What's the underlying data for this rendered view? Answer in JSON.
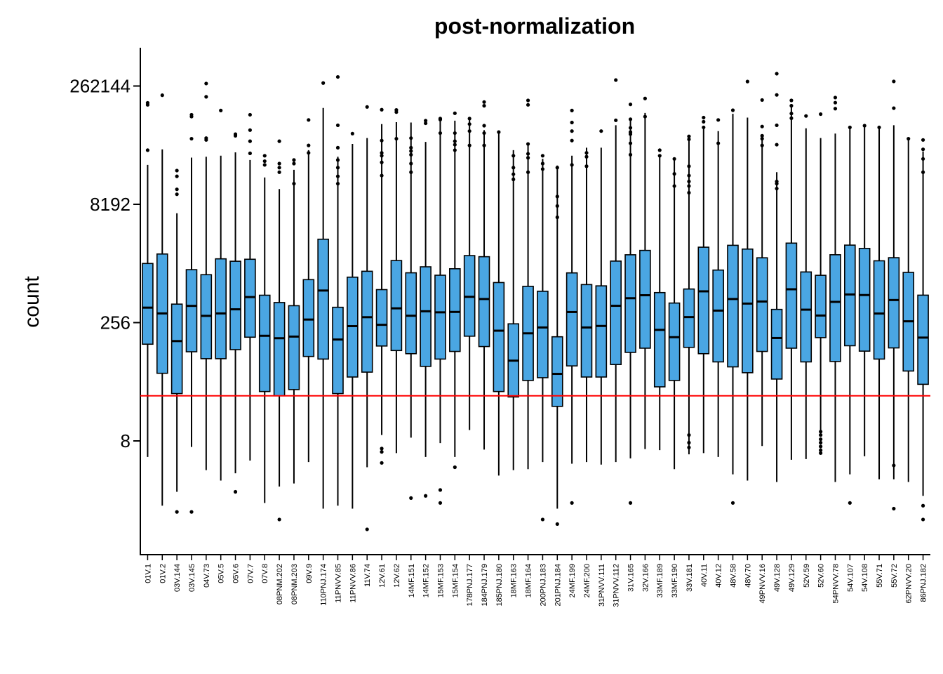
{
  "chart_data": {
    "type": "boxplot",
    "title": "post-normalization",
    "xlabel": "",
    "ylabel": "count",
    "y_scale": "log2",
    "ylim": [
      0.6,
      600000
    ],
    "y_ticks": [
      8,
      256,
      8192,
      262144
    ],
    "y_tick_labels": [
      "8",
      "256",
      "8192",
      "262144"
    ],
    "reference_line": {
      "y": 30,
      "color": "#ff0000"
    },
    "box_color": "#4aa6e3",
    "grid": false,
    "legend": "none",
    "categories": [
      "01V.1",
      "01V.2",
      "03V.144",
      "03V.145",
      "04V.73",
      "05V.5",
      "05V.6",
      "07V.7",
      "07V.8",
      "08PNM.202",
      "08PNM.203",
      "09V.9",
      "110PNJ.174",
      "11PNVV.85",
      "11PNVV.86",
      "11V.74",
      "12V.61",
      "12V.62",
      "14MF.151",
      "14MF.152",
      "15MF.153",
      "15MF.154",
      "178PNJ.177",
      "184PNJ.179",
      "185PNJ.180",
      "18MF.163",
      "18MF.164",
      "200PNJ.183",
      "201PNJ.184",
      "24MF.199",
      "24MF.200",
      "31PNVV.111",
      "31PNVV.112",
      "31V.165",
      "32V.166",
      "33MF.189",
      "33MF.190",
      "33V.181",
      "40V.11",
      "40V.12",
      "48V.58",
      "48V.70",
      "49PNVV.16",
      "49V.128",
      "49V.129",
      "52V.59",
      "52V.60",
      "54PNVV.78",
      "54V.107",
      "54V.108",
      "55V.71",
      "55V.72",
      "62PNVV.20",
      "86PNJ.182"
    ],
    "boxes": [
      {
        "low": 5,
        "q1": 136,
        "median": 397,
        "q3": 1447,
        "high": 26000,
        "outliers": [
          40000,
          151000,
          160000
        ]
      },
      {
        "low": 1.2,
        "q1": 58,
        "median": 335,
        "q3": 1910,
        "high": 41000,
        "outliers": [
          200000
        ]
      },
      {
        "low": 1.8,
        "q1": 32,
        "median": 149,
        "q3": 440,
        "high": 6300,
        "outliers": [
          1.0,
          11000,
          12700,
          18600,
          22000
        ]
      },
      {
        "low": 6.7,
        "q1": 109,
        "median": 418,
        "q3": 1207,
        "high": 32200,
        "outliers": [
          1.0,
          56000,
          107000,
          113000
        ]
      },
      {
        "low": 3.4,
        "q1": 89,
        "median": 312,
        "q3": 1042,
        "high": 33000,
        "outliers": [
          54000,
          57000,
          191000,
          282000
        ]
      },
      {
        "low": 2.5,
        "q1": 89,
        "median": 335,
        "q3": 1658,
        "high": 34000,
        "outliers": [
          128000
        ]
      },
      {
        "low": 3.1,
        "q1": 116,
        "median": 378,
        "q3": 1545,
        "high": 37500,
        "outliers": [
          1.8,
          61000,
          64000
        ]
      },
      {
        "low": 4.5,
        "q1": 167,
        "median": 541,
        "q3": 1638,
        "high": 30000,
        "outliers": [
          36500,
          52000,
          72000,
          113000
        ]
      },
      {
        "low": 1.3,
        "q1": 34,
        "median": 174,
        "q3": 571,
        "high": 18000,
        "outliers": [
          26000,
          29000,
          34000
        ]
      },
      {
        "low": 2.1,
        "q1": 30,
        "median": 162,
        "q3": 461,
        "high": 12800,
        "outliers": [
          0.8,
          21000,
          24000,
          27000,
          52000
        ]
      },
      {
        "low": 2.3,
        "q1": 36,
        "median": 170,
        "q3": 420,
        "high": 22500,
        "outliers": [
          15000,
          27000,
          30000
        ]
      },
      {
        "low": 4.3,
        "q1": 95,
        "median": 280,
        "q3": 901,
        "high": 40000,
        "outliers": [
          37000,
          46000,
          97000
        ]
      },
      {
        "low": 1.1,
        "q1": 88,
        "median": 655,
        "q3": 2946,
        "high": 138000,
        "outliers": [
          286000
        ]
      },
      {
        "low": 1.2,
        "q1": 32,
        "median": 156,
        "q3": 401,
        "high": 33000,
        "outliers": [
          15000,
          18600,
          24000,
          30000,
          43000,
          83000,
          342000
        ]
      },
      {
        "low": 1.1,
        "q1": 52,
        "median": 231,
        "q3": 969,
        "high": 48000,
        "outliers": [
          65000
        ]
      },
      {
        "low": 3.7,
        "q1": 60,
        "median": 300,
        "q3": 1152,
        "high": 57000,
        "outliers": [
          0.6,
          142000
        ]
      },
      {
        "low": 9.5,
        "q1": 129,
        "median": 240,
        "q3": 673,
        "high": 86000,
        "outliers": [
          4.2,
          5.8,
          6.4,
          19000,
          28000,
          34000,
          37000,
          53000,
          131000
        ]
      },
      {
        "low": 5.6,
        "q1": 113,
        "median": 389,
        "q3": 1577,
        "high": 91000,
        "outliers": [
          56000,
          122000,
          130000
        ]
      },
      {
        "low": 8.8,
        "q1": 103,
        "median": 313,
        "q3": 1101,
        "high": 90000,
        "outliers": [
          1.5,
          21000,
          27000,
          35000,
          39000,
          43000,
          57000
        ]
      },
      {
        "low": 5,
        "q1": 71,
        "median": 357,
        "q3": 1313,
        "high": 51000,
        "outliers": [
          1.6,
          88000,
          95000
        ]
      },
      {
        "low": 7.5,
        "q1": 88,
        "median": 346,
        "q3": 1026,
        "high": 105000,
        "outliers": [
          1.3,
          1.9,
          66000,
          98000,
          101000
        ]
      },
      {
        "low": 5,
        "q1": 110,
        "median": 350,
        "q3": 1240,
        "high": 95000,
        "outliers": [
          3.7,
          40000,
          47000,
          52000,
          66000,
          118000
        ]
      },
      {
        "low": 11,
        "q1": 172,
        "median": 545,
        "q3": 1823,
        "high": 99000,
        "outliers": [
          46000,
          70000,
          86000,
          101000
        ]
      },
      {
        "low": 6.2,
        "q1": 127,
        "median": 511,
        "q3": 1765,
        "high": 72000,
        "outliers": [
          46000,
          66000,
          82000,
          147000,
          164000
        ]
      },
      {
        "low": 2.9,
        "q1": 34,
        "median": 202,
        "q3": 828,
        "high": 66000,
        "outliers": [
          68000
        ]
      },
      {
        "low": 3.4,
        "q1": 29,
        "median": 84,
        "q3": 247,
        "high": 40000,
        "outliers": [
          17000,
          19800,
          24000,
          34000
        ]
      },
      {
        "low": 3.5,
        "q1": 47,
        "median": 187,
        "q3": 741,
        "high": 49000,
        "outliers": [
          21000,
          32000,
          36000,
          48000,
          151000,
          172000
        ]
      },
      {
        "low": 4.3,
        "q1": 51,
        "median": 222,
        "q3": 641,
        "high": 31000,
        "outliers": [
          0.8,
          23000,
          27000,
          34000
        ]
      },
      {
        "low": 1.1,
        "q1": 22,
        "median": 57,
        "q3": 169,
        "high": 25500,
        "outliers": [
          0.7,
          5600,
          7800,
          10300,
          24000
        ]
      },
      {
        "low": 4.1,
        "q1": 72,
        "median": 349,
        "q3": 1098,
        "high": 34000,
        "outliers": [
          1.3,
          26000,
          53000,
          70000,
          90000,
          128000
        ]
      },
      {
        "low": 4.3,
        "q1": 52,
        "median": 222,
        "q3": 780,
        "high": 43000,
        "outliers": [
          25000,
          33000,
          37000
        ]
      },
      {
        "low": 4,
        "q1": 52,
        "median": 232,
        "q3": 751,
        "high": 43000,
        "outliers": [
          70000
        ]
      },
      {
        "low": 4.3,
        "q1": 75,
        "median": 419,
        "q3": 1552,
        "high": 83000,
        "outliers": [
          96000,
          312000
        ]
      },
      {
        "low": 4.8,
        "q1": 107,
        "median": 523,
        "q3": 1867,
        "high": 95000,
        "outliers": [
          1.3,
          35000,
          49000,
          64000,
          68000,
          77000,
          99000,
          153000
        ]
      },
      {
        "low": 6.3,
        "q1": 121,
        "median": 571,
        "q3": 2123,
        "high": 119000,
        "outliers": [
          107000,
          182000
        ]
      },
      {
        "low": 6.1,
        "q1": 39,
        "median": 207,
        "q3": 617,
        "high": 33000,
        "outliers": [
          34000,
          40000
        ]
      },
      {
        "low": 3.5,
        "q1": 47,
        "median": 167,
        "q3": 454,
        "high": 30000,
        "outliers": [
          14000,
          20000,
          31000
        ]
      },
      {
        "low": 5.4,
        "q1": 124,
        "median": 301,
        "q3": 685,
        "high": 55000,
        "outliers": [
          6.6,
          7.6,
          9.5,
          11500,
          14000,
          16000,
          19000,
          25000,
          55000,
          60000
        ]
      },
      {
        "low": 5.6,
        "q1": 103,
        "median": 640,
        "q3": 2332,
        "high": 74000,
        "outliers": [
          78000,
          92000,
          104000
        ]
      },
      {
        "low": 5,
        "q1": 81,
        "median": 364,
        "q3": 1193,
        "high": 70000,
        "outliers": [
          49000,
          97000
        ]
      },
      {
        "low": 3,
        "q1": 70,
        "median": 511,
        "q3": 2464,
        "high": 116000,
        "outliers": [
          1.3,
          129000
        ]
      },
      {
        "low": 2.5,
        "q1": 59,
        "median": 447,
        "q3": 2207,
        "high": 104000,
        "outliers": [
          299000
        ]
      },
      {
        "low": 6.9,
        "q1": 110,
        "median": 475,
        "q3": 1709,
        "high": 60000,
        "outliers": [
          46000,
          56000,
          61000,
          80000,
          174000
        ]
      },
      {
        "low": 2.4,
        "q1": 49,
        "median": 163,
        "q3": 377,
        "high": 21000,
        "outliers": [
          13000,
          15000,
          16000,
          47000,
          83000,
          202000,
          376000
        ]
      },
      {
        "low": 4.6,
        "q1": 121,
        "median": 680,
        "q3": 2627,
        "high": 155000,
        "outliers": [
          102000,
          117000,
          147000,
          172000
        ]
      },
      {
        "low": 4.7,
        "q1": 81,
        "median": 374,
        "q3": 1129,
        "high": 76000,
        "outliers": [
          109000
        ]
      },
      {
        "low": 9.3,
        "q1": 165,
        "median": 315,
        "q3": 1023,
        "high": 57000,
        "outliers": [
          5.6,
          6.1,
          6.8,
          7.6,
          8.4,
          9.5,
          10.5,
          115000
        ]
      },
      {
        "low": 2.4,
        "q1": 82,
        "median": 470,
        "q3": 1869,
        "high": 65000,
        "outliers": [
          135000,
          161000,
          187000
        ]
      },
      {
        "low": 3,
        "q1": 130,
        "median": 584,
        "q3": 2478,
        "high": 80000,
        "outliers": [
          1.3,
          78000
        ]
      },
      {
        "low": 5.1,
        "q1": 111,
        "median": 574,
        "q3": 2250,
        "high": 84000,
        "outliers": [
          82000
        ]
      },
      {
        "low": 2.6,
        "q1": 88,
        "median": 334,
        "q3": 1565,
        "high": 78000,
        "outliers": [
          78000
        ]
      },
      {
        "low": 2.6,
        "q1": 122,
        "median": 496,
        "q3": 1714,
        "high": 83000,
        "outliers": [
          1.1,
          3.9,
          137000,
          300000
        ]
      },
      {
        "low": 2.4,
        "q1": 62,
        "median": 266,
        "q3": 1114,
        "high": 54000,
        "outliers": [
          56000
        ]
      },
      {
        "low": 1.6,
        "q1": 42,
        "median": 165,
        "q3": 572,
        "high": 38500,
        "outliers": [
          0.8,
          1.2,
          21000,
          31000,
          41000,
          54000
        ]
      }
    ]
  }
}
